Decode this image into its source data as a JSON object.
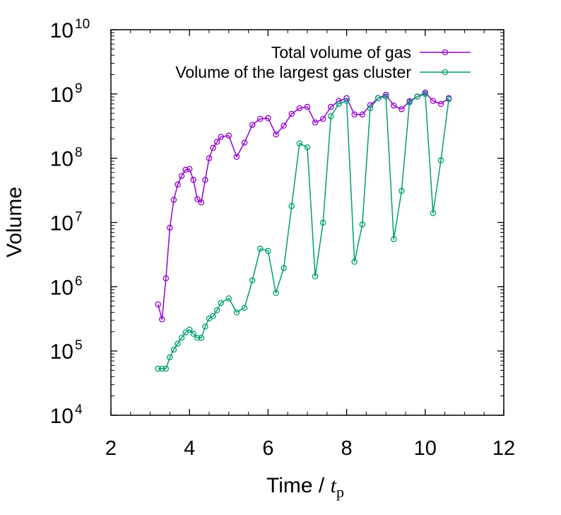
{
  "chart_data": {
    "type": "line",
    "xlabel": "Time / ",
    "xlabel_var": "t",
    "xlabel_sub": "p",
    "ylabel": "Volume",
    "xlim": [
      2,
      12
    ],
    "ylim_log10": [
      4,
      10
    ],
    "y_scale": "log",
    "x_ticks": [
      "2",
      "4",
      "6",
      "8",
      "10",
      "12"
    ],
    "x_tick_values": [
      2,
      4,
      6,
      8,
      10,
      12
    ],
    "y_tick_base": "10",
    "y_tick_exponents": [
      "4",
      "5",
      "6",
      "7",
      "8",
      "9",
      "10"
    ],
    "legend_position": "top-right",
    "series": [
      {
        "name": "Total volume of gas",
        "color": "#9400d3",
        "marker": "open-circle",
        "x": [
          3.2,
          3.3,
          3.4,
          3.5,
          3.6,
          3.7,
          3.8,
          3.9,
          4.0,
          4.1,
          4.2,
          4.3,
          4.4,
          4.5,
          4.6,
          4.7,
          4.8,
          5.0,
          5.2,
          5.4,
          5.6,
          5.8,
          6.0,
          6.2,
          6.4,
          6.6,
          6.8,
          7.0,
          7.2,
          7.4,
          7.6,
          7.8,
          8.0,
          8.2,
          8.4,
          8.6,
          8.8,
          9.0,
          9.2,
          9.4,
          9.6,
          9.8,
          10.0,
          10.2,
          10.4,
          10.6
        ],
        "y": [
          530000.0,
          310000.0,
          1350000.0,
          8300000.0,
          22500000.0,
          39000000.0,
          53000000.0,
          66000000.0,
          68000000.0,
          46000000.0,
          23000000.0,
          20500000.0,
          46000000.0,
          100000000.0,
          145000000.0,
          180000000.0,
          215000000.0,
          225000000.0,
          105000000.0,
          175000000.0,
          330000000.0,
          410000000.0,
          420000000.0,
          235000000.0,
          320000000.0,
          490000000.0,
          600000000.0,
          630000000.0,
          360000000.0,
          410000000.0,
          630000000.0,
          780000000.0,
          860000000.0,
          480000000.0,
          480000000.0,
          670000000.0,
          860000000.0,
          970000000.0,
          660000000.0,
          580000000.0,
          770000000.0,
          910000000.0,
          1050000000.0,
          780000000.0,
          700000000.0,
          860000000.0
        ]
      },
      {
        "name": "Volume of the largest gas cluster",
        "color": "#009e73",
        "marker": "open-circle",
        "x": [
          3.2,
          3.3,
          3.4,
          3.5,
          3.6,
          3.7,
          3.8,
          3.9,
          4.0,
          4.1,
          4.2,
          4.3,
          4.4,
          4.5,
          4.6,
          4.7,
          4.8,
          5.0,
          5.2,
          5.4,
          5.6,
          5.8,
          6.0,
          6.2,
          6.4,
          6.6,
          6.8,
          7.0,
          7.2,
          7.4,
          7.6,
          7.8,
          8.0,
          8.2,
          8.4,
          8.6,
          8.8,
          9.0,
          9.2,
          9.4,
          9.6,
          9.8,
          10.0,
          10.2,
          10.4,
          10.6
        ],
        "y": [
          53000.0,
          53000.0,
          53000.0,
          80000.0,
          105000.0,
          130000.0,
          160000.0,
          195000.0,
          215000.0,
          185000.0,
          160000.0,
          160000.0,
          240000.0,
          320000.0,
          350000.0,
          430000.0,
          560000.0,
          660000.0,
          400000.0,
          470000.0,
          1250000.0,
          3900000.0,
          3600000.0,
          800000.0,
          1950000.0,
          18000000.0,
          170000000.0,
          148000000.0,
          1450000.0,
          9900000.0,
          450000000.0,
          700000000.0,
          780000000.0,
          2450000.0,
          9300000.0,
          600000000.0,
          860000000.0,
          910000000.0,
          5500000.0,
          31000000.0,
          740000000.0,
          910000000.0,
          1000000000.0,
          14000000.0,
          93000000.0,
          830000000.0
        ]
      }
    ]
  }
}
